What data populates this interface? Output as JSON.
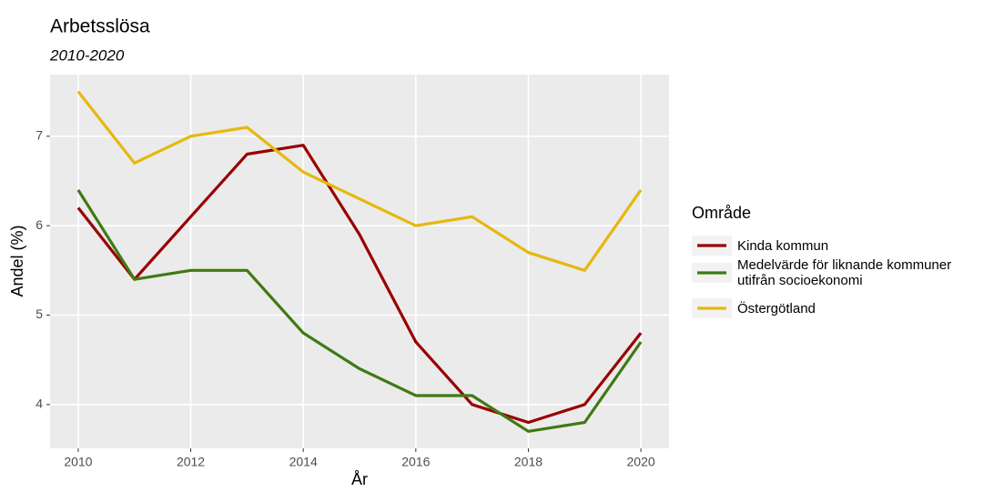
{
  "chart_data": {
    "type": "line",
    "title": "Arbetsslösa",
    "subtitle": "2010-2020",
    "x_label": "År",
    "y_label": "Andel (%)",
    "legend_title": "Område",
    "x": [
      2010,
      2011,
      2012,
      2013,
      2014,
      2015,
      2016,
      2017,
      2018,
      2019,
      2020
    ],
    "series": [
      {
        "name": "Kinda kommun",
        "color": "#990000",
        "values": [
          6.2,
          5.4,
          6.1,
          6.8,
          6.9,
          5.9,
          4.7,
          4.0,
          3.8,
          4.0,
          4.8
        ]
      },
      {
        "name": "Medelvärde för liknande kommuner utifrån socioekonomi",
        "color": "#3f7a12",
        "values": [
          6.4,
          5.4,
          5.5,
          5.5,
          4.8,
          4.4,
          4.1,
          4.1,
          3.7,
          3.8,
          4.7
        ]
      },
      {
        "name": "Östergötland",
        "color": "#e6b80f",
        "values": [
          7.5,
          6.7,
          7.0,
          7.1,
          6.6,
          6.3,
          6.0,
          6.1,
          5.7,
          5.5,
          6.4
        ]
      }
    ],
    "xlim": [
      2009.5,
      2020.5
    ],
    "xticks": [
      2010,
      2012,
      2014,
      2016,
      2018,
      2020
    ],
    "ylim": [
      3.51,
      7.69
    ],
    "yticks": [
      4,
      5,
      6,
      7
    ],
    "grid": true,
    "legend": "right"
  }
}
